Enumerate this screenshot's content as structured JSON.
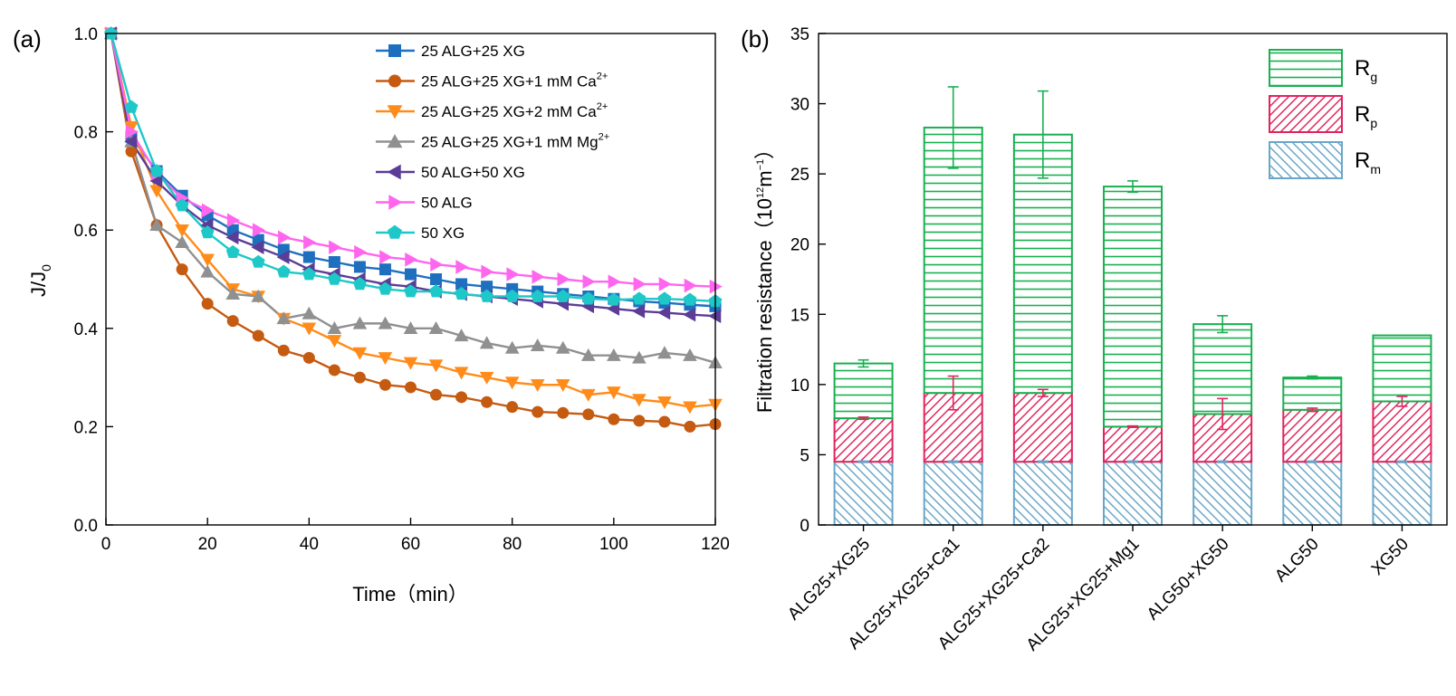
{
  "chart_data": [
    {
      "type": "line",
      "panel_label": "(a)",
      "xlabel": "Time（min）",
      "ylabel_main": "J/J",
      "ylabel_sub": "0",
      "xlim": [
        0,
        120
      ],
      "ylim": [
        0,
        1.0
      ],
      "xticks": [
        0,
        20,
        40,
        60,
        80,
        100,
        120
      ],
      "yticks": [
        "0.0",
        "0.2",
        "0.4",
        "0.6",
        "0.8",
        "1.0"
      ],
      "x": [
        1,
        5,
        10,
        15,
        20,
        25,
        30,
        35,
        40,
        45,
        50,
        55,
        60,
        65,
        70,
        75,
        80,
        85,
        90,
        95,
        100,
        105,
        110,
        115,
        120
      ],
      "series": [
        {
          "name": "25 ALG+25 XG",
          "label": "25 ALG+25 XG",
          "sup": "",
          "color": "#1f6fbf",
          "marker": "square",
          "values": [
            1.0,
            0.79,
            0.72,
            0.67,
            0.63,
            0.6,
            0.58,
            0.56,
            0.545,
            0.535,
            0.525,
            0.52,
            0.51,
            0.5,
            0.49,
            0.485,
            0.48,
            0.475,
            0.47,
            0.465,
            0.46,
            0.455,
            0.452,
            0.448,
            0.445
          ]
        },
        {
          "name": "25 ALG+25 XG+1 mM Ca2+",
          "label": "25 ALG+25 XG+1 mM Ca",
          "sup": "2+",
          "color": "#c55a11",
          "marker": "circle",
          "values": [
            1.0,
            0.76,
            0.61,
            0.52,
            0.45,
            0.415,
            0.385,
            0.355,
            0.34,
            0.315,
            0.3,
            0.285,
            0.28,
            0.265,
            0.26,
            0.25,
            0.24,
            0.23,
            0.228,
            0.225,
            0.215,
            0.212,
            0.21,
            0.2,
            0.205
          ]
        },
        {
          "name": "25 ALG+25 XG+2 mM Ca2+",
          "label": "25 ALG+25 XG+2 mM Ca",
          "sup": "2+",
          "color": "#ff8c1a",
          "marker": "triangle-down",
          "values": [
            1.0,
            0.81,
            0.68,
            0.6,
            0.54,
            0.48,
            0.465,
            0.42,
            0.4,
            0.375,
            0.35,
            0.34,
            0.33,
            0.325,
            0.31,
            0.3,
            0.29,
            0.285,
            0.285,
            0.265,
            0.27,
            0.255,
            0.25,
            0.24,
            0.245
          ]
        },
        {
          "name": "25 ALG+25 XG+1 mM Mg2+",
          "label": "25 ALG+25 XG+1 mM Mg",
          "sup": "2+",
          "color": "#909090",
          "marker": "triangle-up",
          "values": [
            1.0,
            0.78,
            0.61,
            0.575,
            0.515,
            0.47,
            0.465,
            0.42,
            0.43,
            0.4,
            0.41,
            0.41,
            0.4,
            0.4,
            0.385,
            0.37,
            0.36,
            0.365,
            0.36,
            0.345,
            0.345,
            0.34,
            0.35,
            0.345,
            0.33
          ]
        },
        {
          "name": "50 ALG+50 XG",
          "label": "50 ALG+50 XG",
          "sup": "",
          "color": "#5b3c96",
          "marker": "triangle-left",
          "values": [
            1.0,
            0.78,
            0.7,
            0.65,
            0.61,
            0.585,
            0.565,
            0.545,
            0.52,
            0.51,
            0.5,
            0.49,
            0.485,
            0.475,
            0.47,
            0.465,
            0.46,
            0.455,
            0.45,
            0.445,
            0.44,
            0.435,
            0.432,
            0.428,
            0.425
          ]
        },
        {
          "name": "50 ALG",
          "label": "50 ALG",
          "sup": "",
          "color": "#ff66ee",
          "marker": "triangle-right",
          "values": [
            1.0,
            0.8,
            0.715,
            0.665,
            0.64,
            0.62,
            0.6,
            0.585,
            0.575,
            0.565,
            0.555,
            0.545,
            0.54,
            0.53,
            0.525,
            0.515,
            0.51,
            0.505,
            0.5,
            0.495,
            0.495,
            0.49,
            0.49,
            0.487,
            0.485
          ]
        },
        {
          "name": "50 XG",
          "label": "50 XG",
          "sup": "",
          "color": "#1ec8c8",
          "marker": "pentagon",
          "values": [
            1.0,
            0.85,
            0.72,
            0.65,
            0.595,
            0.555,
            0.535,
            0.515,
            0.51,
            0.5,
            0.49,
            0.48,
            0.475,
            0.475,
            0.47,
            0.465,
            0.465,
            0.465,
            0.465,
            0.46,
            0.458,
            0.46,
            0.46,
            0.458,
            0.455
          ]
        }
      ]
    },
    {
      "type": "bar",
      "stacked": true,
      "panel_label": "(b)",
      "ylabel_pre": "Filtration resistance（10",
      "ylabel_sup": "12",
      "ylabel_mid": "m",
      "ylabel_sup2": "−1",
      "ylabel_post": "）",
      "ylim": [
        0,
        35
      ],
      "yticks": [
        0,
        5,
        10,
        15,
        20,
        25,
        30,
        35
      ],
      "categories": [
        "ALG25+XG25",
        "ALG25+XG25+Ca1",
        "ALG25+XG25+Ca2",
        "ALG25+XG25+Mg1",
        "ALG50+XG50",
        "ALG50",
        "XG50"
      ],
      "series": [
        {
          "name": "Rm",
          "label": "R",
          "sub": "m",
          "color": "#6aa6c8",
          "hatch": "diag-back",
          "values": [
            4.5,
            4.5,
            4.5,
            4.5,
            4.5,
            4.5,
            4.5
          ],
          "errors": [
            0.05,
            0.05,
            0.05,
            0.05,
            0.05,
            0.05,
            0.05
          ]
        },
        {
          "name": "Rp",
          "label": "R",
          "sub": "p",
          "color": "#e0245e",
          "hatch": "diag-fwd",
          "values": [
            3.1,
            4.9,
            4.9,
            2.5,
            3.4,
            3.7,
            4.3
          ],
          "errors": [
            0.08,
            1.2,
            0.25,
            0.05,
            1.1,
            0.12,
            0.35
          ]
        },
        {
          "name": "Rg",
          "label": "R",
          "sub": "g",
          "color": "#18b050",
          "hatch": "horizontal",
          "values": [
            3.9,
            18.9,
            18.4,
            17.1,
            6.4,
            2.3,
            4.7
          ],
          "errors": [
            0.25,
            2.9,
            3.1,
            0.4,
            0.6,
            0.1,
            0.0
          ]
        }
      ]
    }
  ]
}
